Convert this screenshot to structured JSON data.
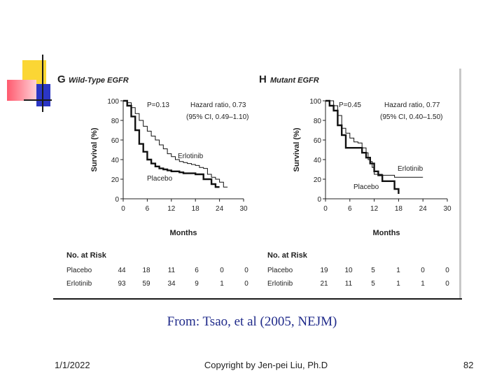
{
  "caption": "From: Tsao, et al (2005, NEJM)",
  "footer": {
    "date": "1/1/2022",
    "copyright": "Copyright by Jen-pei Liu, Ph.D",
    "page": "82"
  },
  "chart_data": [
    {
      "type": "line",
      "panel_letter": "G",
      "title": "Wild-Type EGFR",
      "xlabel": "Months",
      "ylabel": "Survival (%)",
      "xlim": [
        0,
        30
      ],
      "ylim": [
        0,
        100
      ],
      "xticks": [
        0,
        6,
        12,
        18,
        24,
        30
      ],
      "yticks": [
        0,
        20,
        40,
        60,
        80,
        100
      ],
      "p_value": "P=0.13",
      "hazard_ratio": "Hazard ratio, 0.73",
      "ci": "(95% CI, 0.49–1.10)",
      "series": [
        {
          "name": "Erlotinib",
          "style": "thin",
          "points": [
            [
              0,
              100
            ],
            [
              1,
              98
            ],
            [
              2,
              93
            ],
            [
              3,
              87
            ],
            [
              4,
              80
            ],
            [
              5,
              74
            ],
            [
              6,
              69
            ],
            [
              7,
              64
            ],
            [
              8,
              60
            ],
            [
              9,
              55
            ],
            [
              10,
              51
            ],
            [
              11,
              46
            ],
            [
              12,
              43
            ],
            [
              13,
              40
            ],
            [
              14,
              38
            ],
            [
              15,
              37
            ],
            [
              16,
              36
            ],
            [
              17,
              35
            ],
            [
              18,
              34
            ],
            [
              19,
              32
            ],
            [
              20,
              31
            ],
            [
              21,
              25
            ],
            [
              22,
              22
            ],
            [
              23,
              20
            ],
            [
              24,
              17
            ],
            [
              25,
              12
            ],
            [
              26,
              12
            ]
          ]
        },
        {
          "name": "Placebo",
          "style": "thick",
          "points": [
            [
              0,
              100
            ],
            [
              1,
              95
            ],
            [
              2,
              84
            ],
            [
              3,
              70
            ],
            [
              4,
              56
            ],
            [
              5,
              48
            ],
            [
              6,
              40
            ],
            [
              7,
              36
            ],
            [
              8,
              33
            ],
            [
              9,
              31
            ],
            [
              10,
              30
            ],
            [
              11,
              29
            ],
            [
              12,
              28
            ],
            [
              13,
              28
            ],
            [
              14,
              27
            ],
            [
              15,
              26
            ],
            [
              16,
              26
            ],
            [
              17,
              26
            ],
            [
              18,
              25
            ],
            [
              19,
              25
            ],
            [
              20,
              20
            ],
            [
              21,
              20
            ],
            [
              22,
              15
            ],
            [
              23,
              12
            ],
            [
              24,
              12
            ]
          ]
        }
      ],
      "risk_table": {
        "heading": "No. at Risk",
        "rows": [
          {
            "label": "Placebo",
            "values": [
              "44",
              "18",
              "11",
              "6",
              "0",
              "0"
            ]
          },
          {
            "label": "Erlotinib",
            "values": [
              "93",
              "59",
              "34",
              "9",
              "1",
              "0"
            ]
          }
        ]
      }
    },
    {
      "type": "line",
      "panel_letter": "H",
      "title": "Mutant EGFR",
      "xlabel": "Months",
      "ylabel": "Survival (%)",
      "xlim": [
        0,
        30
      ],
      "ylim": [
        0,
        100
      ],
      "xticks": [
        0,
        6,
        12,
        18,
        24,
        30
      ],
      "yticks": [
        0,
        20,
        40,
        60,
        80,
        100
      ],
      "p_value": "P=0.45",
      "hazard_ratio": "Hazard ratio, 0.77",
      "ci": "(95% CI, 0.40–1.50)",
      "series": [
        {
          "name": "Erlotinib",
          "style": "thin",
          "points": [
            [
              0,
              100
            ],
            [
              2,
              95
            ],
            [
              3,
              85
            ],
            [
              4,
              72
            ],
            [
              5,
              67
            ],
            [
              6,
              62
            ],
            [
              7,
              58
            ],
            [
              8,
              57
            ],
            [
              9,
              52
            ],
            [
              10,
              47
            ],
            [
              10.5,
              40
            ],
            [
              11,
              38
            ],
            [
              11.5,
              32
            ],
            [
              12,
              25
            ],
            [
              14,
              24
            ],
            [
              16,
              24
            ],
            [
              17,
              22
            ],
            [
              18,
              22
            ],
            [
              24,
              22
            ]
          ]
        },
        {
          "name": "Placebo",
          "style": "thick",
          "points": [
            [
              0,
              100
            ],
            [
              1,
              95
            ],
            [
              2,
              90
            ],
            [
              3,
              75
            ],
            [
              4,
              65
            ],
            [
              5,
              52
            ],
            [
              8,
              52
            ],
            [
              9,
              47
            ],
            [
              10,
              42
            ],
            [
              11,
              36
            ],
            [
              12,
              28
            ],
            [
              13,
              24
            ],
            [
              14,
              18
            ],
            [
              17,
              10
            ],
            [
              18,
              5
            ]
          ]
        }
      ],
      "risk_table": {
        "heading": "No. at Risk",
        "rows": [
          {
            "label": "Placebo",
            "values": [
              "19",
              "10",
              "5",
              "1",
              "0",
              "0"
            ]
          },
          {
            "label": "Erlotinib",
            "values": [
              "21",
              "11",
              "5",
              "1",
              "1",
              "0"
            ]
          }
        ]
      }
    }
  ]
}
